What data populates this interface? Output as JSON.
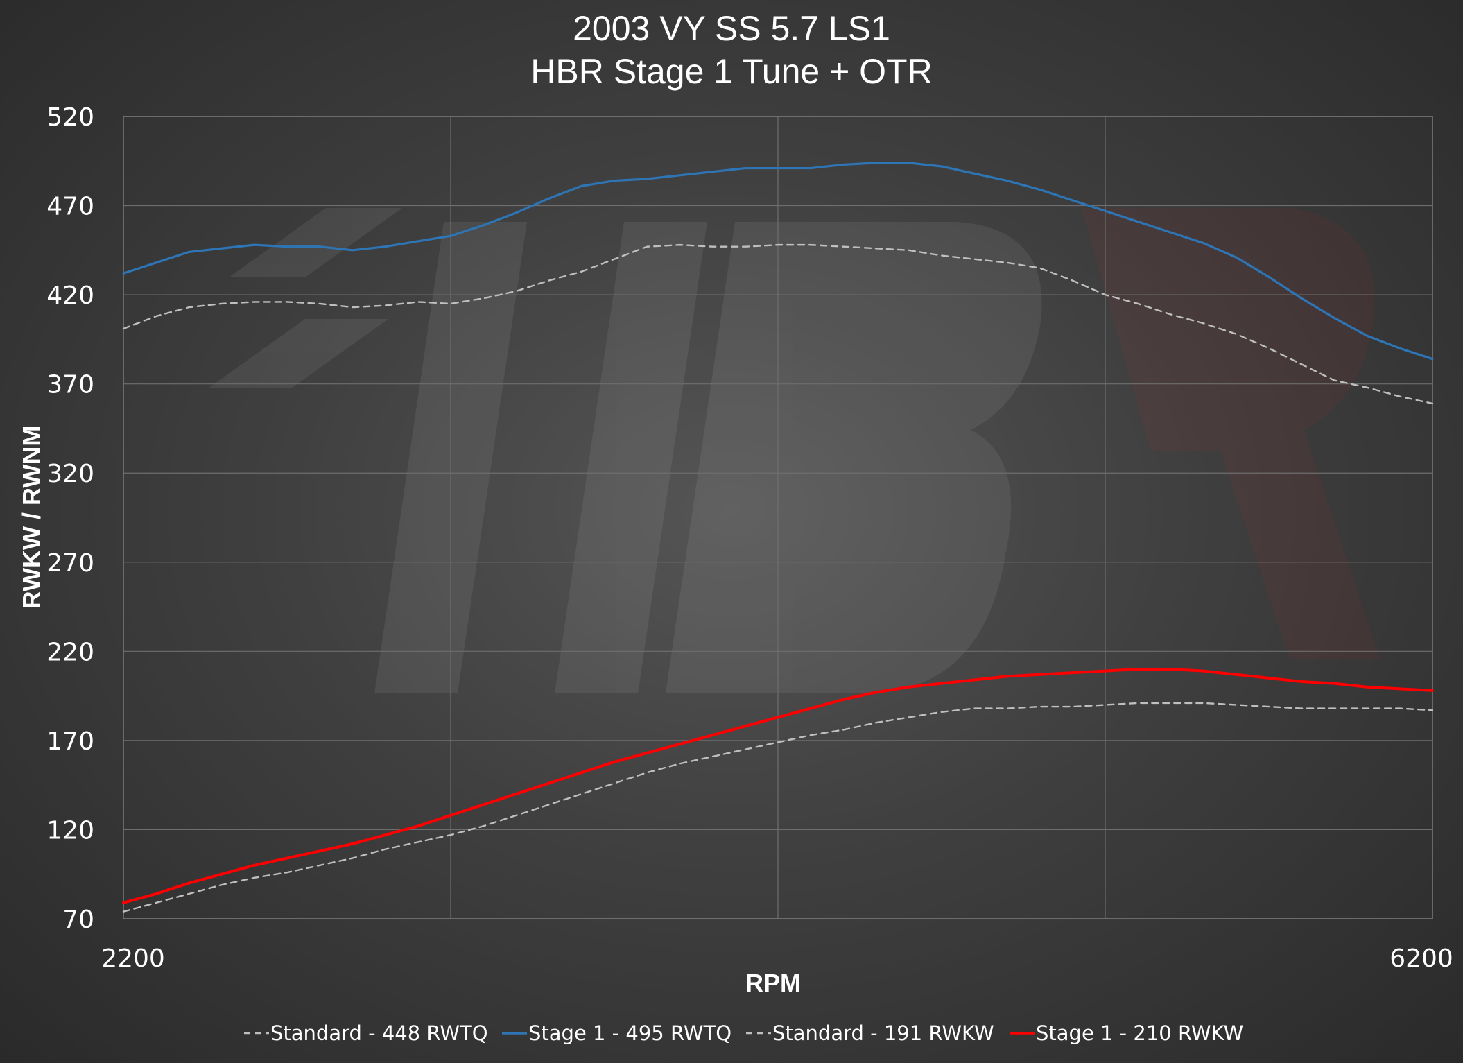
{
  "chart_data": {
    "type": "line",
    "title": [
      "2003 VY SS 5.7 LS1",
      "HBR Stage 1 Tune + OTR"
    ],
    "xlabel": "RPM",
    "ylabel": "RWKW / RWNM",
    "xlim": [
      2200,
      6200
    ],
    "ylim": [
      70,
      520
    ],
    "xticks": [
      2200,
      6200
    ],
    "yticks": [
      70,
      120,
      170,
      220,
      270,
      320,
      370,
      420,
      470,
      520
    ],
    "grid": true,
    "legend_position": "bottom",
    "watermark": "HBR",
    "series": [
      {
        "name": "Standard - 448 RWTQ",
        "color": "#bfbfbf",
        "dash": true,
        "x": [
          2200,
          2300,
          2400,
          2500,
          2600,
          2700,
          2800,
          2900,
          3000,
          3100,
          3200,
          3300,
          3400,
          3500,
          3600,
          3700,
          3800,
          3900,
          4000,
          4100,
          4200,
          4300,
          4400,
          4500,
          4600,
          4700,
          4800,
          4900,
          5000,
          5100,
          5200,
          5300,
          5400,
          5500,
          5600,
          5700,
          5800,
          5900,
          6000,
          6100,
          6200
        ],
        "values": [
          401,
          408,
          413,
          415,
          416,
          416,
          415,
          413,
          414,
          416,
          415,
          418,
          422,
          428,
          433,
          440,
          447,
          448,
          447,
          447,
          448,
          448,
          447,
          446,
          445,
          442,
          440,
          438,
          435,
          428,
          420,
          415,
          409,
          404,
          398,
          390,
          381,
          372,
          368,
          363,
          359
        ]
      },
      {
        "name": "Stage 1 - 495 RWTQ",
        "color": "#2e75b6",
        "dash": false,
        "x": [
          2200,
          2300,
          2400,
          2500,
          2600,
          2700,
          2800,
          2900,
          3000,
          3100,
          3200,
          3300,
          3400,
          3500,
          3600,
          3700,
          3800,
          3900,
          4000,
          4100,
          4200,
          4300,
          4400,
          4500,
          4600,
          4700,
          4800,
          4900,
          5000,
          5100,
          5200,
          5300,
          5400,
          5500,
          5600,
          5700,
          5800,
          5900,
          6000,
          6100,
          6200
        ],
        "values": [
          432,
          438,
          444,
          446,
          448,
          447,
          447,
          445,
          447,
          450,
          453,
          459,
          466,
          474,
          481,
          484,
          485,
          487,
          489,
          491,
          491,
          491,
          493,
          494,
          494,
          492,
          488,
          484,
          479,
          473,
          467,
          461,
          455,
          449,
          441,
          430,
          418,
          407,
          397,
          390,
          384
        ]
      },
      {
        "name": "Standard - 191 RWKW",
        "color": "#bfbfbf",
        "dash": true,
        "x": [
          2200,
          2300,
          2400,
          2500,
          2600,
          2700,
          2800,
          2900,
          3000,
          3100,
          3200,
          3300,
          3400,
          3500,
          3600,
          3700,
          3800,
          3900,
          4000,
          4100,
          4200,
          4300,
          4400,
          4500,
          4600,
          4700,
          4800,
          4900,
          5000,
          5100,
          5200,
          5300,
          5400,
          5500,
          5600,
          5700,
          5800,
          5900,
          6000,
          6100,
          6200
        ],
        "values": [
          74,
          79,
          84,
          89,
          93,
          96,
          100,
          104,
          109,
          113,
          117,
          122,
          128,
          134,
          140,
          146,
          152,
          157,
          161,
          165,
          169,
          173,
          176,
          180,
          183,
          186,
          188,
          188,
          189,
          189,
          190,
          191,
          191,
          191,
          190,
          189,
          188,
          188,
          188,
          188,
          187
        ]
      },
      {
        "name": "Stage 1 - 210 RWKW",
        "color": "#ff0000",
        "dash": false,
        "x": [
          2200,
          2300,
          2400,
          2500,
          2600,
          2700,
          2800,
          2900,
          3000,
          3100,
          3200,
          3300,
          3400,
          3500,
          3600,
          3700,
          3800,
          3900,
          4000,
          4100,
          4200,
          4300,
          4400,
          4500,
          4600,
          4700,
          4800,
          4900,
          5000,
          5100,
          5200,
          5300,
          5400,
          5500,
          5600,
          5700,
          5800,
          5900,
          6000,
          6100,
          6200
        ],
        "values": [
          79,
          84,
          90,
          95,
          100,
          104,
          108,
          112,
          117,
          122,
          128,
          134,
          140,
          146,
          152,
          158,
          163,
          168,
          173,
          178,
          183,
          188,
          193,
          197,
          200,
          202,
          204,
          206,
          207,
          208,
          209,
          210,
          210,
          209,
          207,
          205,
          203,
          202,
          200,
          199,
          198
        ]
      }
    ]
  }
}
